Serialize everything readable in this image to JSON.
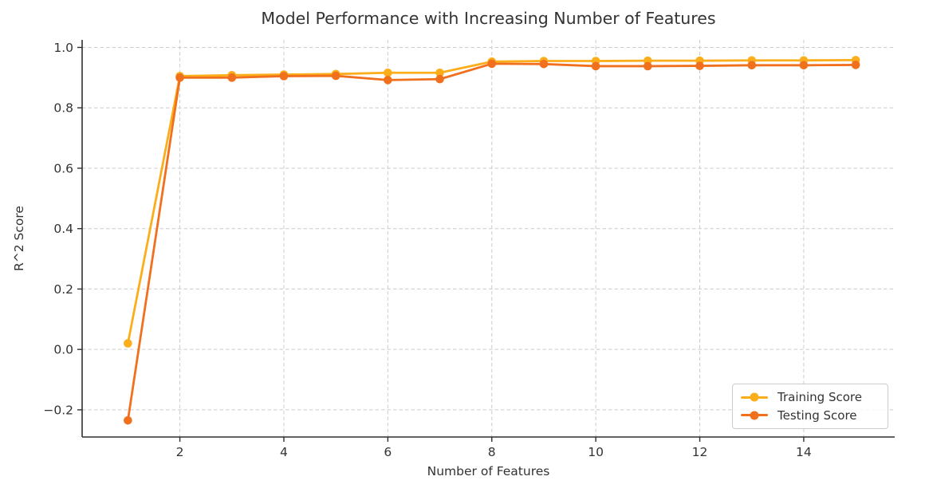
{
  "chart_data": {
    "type": "line",
    "title": "Model Performance with Increasing Number of Features",
    "xlabel": "Number of Features",
    "ylabel": "R^2 Score",
    "x": [
      1,
      2,
      3,
      4,
      5,
      6,
      7,
      8,
      9,
      10,
      11,
      12,
      13,
      14,
      15
    ],
    "series": [
      {
        "name": "Training Score",
        "color": "#FBAD1A",
        "values": [
          0.02,
          0.905,
          0.908,
          0.91,
          0.912,
          0.916,
          0.916,
          0.953,
          0.955,
          0.955,
          0.956,
          0.956,
          0.957,
          0.957,
          0.958
        ]
      },
      {
        "name": "Testing Score",
        "color": "#F0701E",
        "values": [
          -0.235,
          0.9,
          0.9,
          0.905,
          0.906,
          0.892,
          0.895,
          0.946,
          0.945,
          0.938,
          0.938,
          0.939,
          0.941,
          0.941,
          0.942
        ]
      }
    ],
    "xticks": [
      2,
      4,
      6,
      8,
      10,
      12,
      14
    ],
    "xtick_labels": [
      "2",
      "4",
      "6",
      "8",
      "10",
      "12",
      "14"
    ],
    "yticks": [
      -0.2,
      0.0,
      0.2,
      0.4,
      0.6,
      0.8,
      1.0
    ],
    "ytick_labels": [
      "−0.2",
      "0.0",
      "0.2",
      "0.4",
      "0.6",
      "0.8",
      "1.0"
    ],
    "xlim": [
      0.12,
      15.75
    ],
    "ylim": [
      -0.29,
      1.025
    ],
    "grid": true,
    "grid_style": "dashed",
    "legend_position": "lower right",
    "axis_color": "#2f2f2f",
    "grid_color": "#cccccc",
    "text_color": "#333333",
    "background_color": "#ffffff"
  }
}
